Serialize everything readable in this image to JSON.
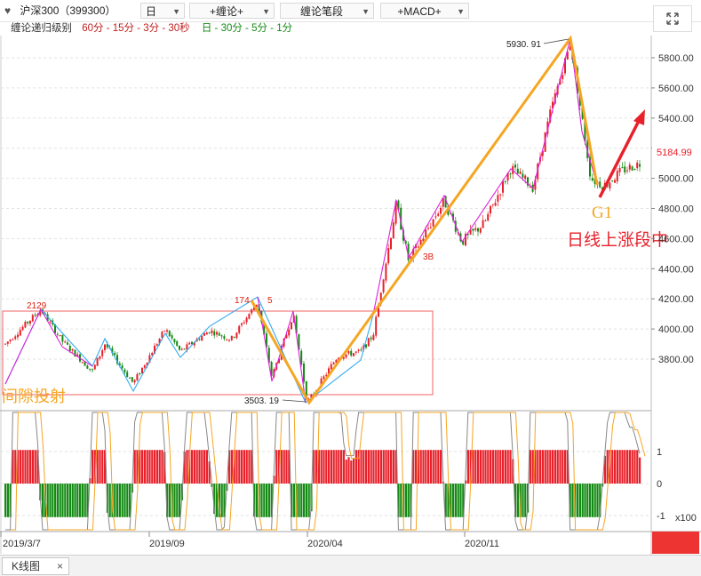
{
  "toolbar": {
    "symbol": "沪深300（399300）",
    "period": "日",
    "chan_menu": "+缠论+",
    "chan_stroke": "缠论笔段",
    "macd_menu": "+MACD+"
  },
  "infobar": {
    "title": "缠论递归级别",
    "levels_a": "60分 - 15分 - 3分 - 30秒",
    "levels_b": "日 - 30分 - 5分 - 1分"
  },
  "colors": {
    "up": "#e8202a",
    "down": "#138a13",
    "stroke_cyan": "#33aaee",
    "stroke_magenta": "#dd22dd",
    "segment": "#f5a623",
    "arrow": "#e8202a",
    "box": "#f06060"
  },
  "chart_data": {
    "type": "candlestick",
    "price_axis_labels": [
      "5800.00",
      "5600.00",
      "5400.00",
      "5200.00",
      "5000.00",
      "4800.00",
      "4600.00",
      "4400.00",
      "4200.00",
      "4000.00",
      "3800.00"
    ],
    "ylim": [
      3460,
      6030
    ],
    "time_labels": [
      "2019/3/7",
      "2019/09",
      "2020/04",
      "2020/11"
    ],
    "last_price": "5184.99",
    "macd_axis": {
      "labels": [
        "1",
        "0",
        "-1"
      ],
      "unit": "x100"
    },
    "pivot_points": [
      {
        "date": "2019-04",
        "value": "2129"
      },
      {
        "date": "2020-01",
        "value": "174"
      },
      {
        "date": "2020-01",
        "value": "5"
      },
      {
        "date": "2020-03",
        "value": "3503. 19"
      },
      {
        "date": "2021-02",
        "value": "5930. 91"
      }
    ],
    "segments": [
      {
        "from": {
          "date": "2020-01",
          "value": 4180
        },
        "to": {
          "date": "2020-03",
          "value": 3503.19
        }
      },
      {
        "from": {
          "date": "2020-03",
          "value": 3503.19
        },
        "to": {
          "date": "2021-02",
          "value": 5930.91
        }
      },
      {
        "from": {
          "date": "2021-02",
          "value": 5930.91
        },
        "to": {
          "date": "2021-03",
          "value": 4860
        }
      }
    ]
  },
  "annotations": {
    "box_label": "间隙投射",
    "b3": "3B",
    "g1": "G1",
    "trend_text": "日线上涨段中"
  },
  "tabs": [
    {
      "label": "K线图",
      "close": "×"
    }
  ]
}
